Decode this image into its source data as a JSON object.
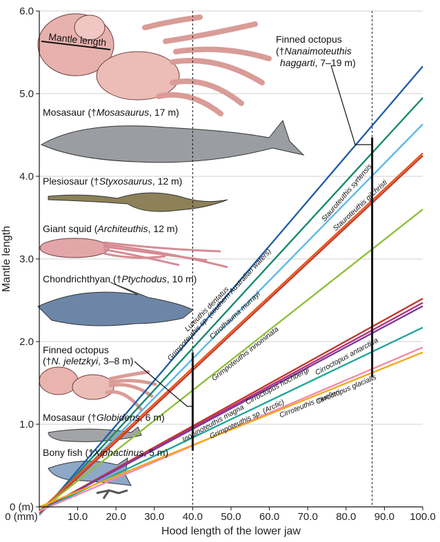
{
  "chart_data": {
    "type": "line",
    "xlabel": "Hood length of the lower jaw",
    "ylabel": "Mantle length",
    "xlim": [
      0,
      100
    ],
    "ylim": [
      0,
      6
    ],
    "x_ticks": [
      "0 (mm)",
      "10.0",
      "20.0",
      "30.0",
      "40.0",
      "50.0",
      "60.0",
      "70.0",
      "80.0",
      "90.0",
      "100.0"
    ],
    "x_tick_values": [
      0,
      10,
      20,
      30,
      40,
      50,
      60,
      70,
      80,
      90,
      100
    ],
    "y_ticks": [
      "0 (m)",
      "1.0",
      "2.0",
      "3.0",
      "4.0",
      "5.0",
      "6.0"
    ],
    "y_tick_values": [
      0,
      1,
      2,
      3,
      4,
      5,
      6
    ],
    "grid": "horizontal",
    "series": [
      {
        "name": "Stauroteuthis syrtensis",
        "color": "#1f5fa8",
        "x": [
          0,
          100
        ],
        "y": [
          -0.1,
          5.33
        ]
      },
      {
        "name": "Grimpoteuthis sp. (southern Australian waters)",
        "color": "#158a6a",
        "x": [
          0,
          100
        ],
        "y": [
          -0.1,
          4.95
        ]
      },
      {
        "name": "Luteuthis dentatus",
        "color": "#5cb8e8",
        "x": [
          0,
          100
        ],
        "y": [
          -0.1,
          4.63
        ]
      },
      {
        "name": "Stauroteuthis gilchristi",
        "color": "#e8561c",
        "x": [
          0,
          100
        ],
        "y": [
          -0.05,
          4.28
        ]
      },
      {
        "name": "Cirrothauma murrayi",
        "color": "#c43a2a",
        "x": [
          0,
          100
        ],
        "y": [
          -0.08,
          4.25
        ]
      },
      {
        "name": "Grimpoteuthis innominata",
        "color": "#8fbf3a",
        "x": [
          0,
          100
        ],
        "y": [
          -0.05,
          3.6
        ]
      },
      {
        "name": "Inopinoteuthis magna",
        "color": "#c0392b",
        "x": [
          0,
          100
        ],
        "y": [
          -0.05,
          2.52
        ]
      },
      {
        "name": "Cirroctopus antarctica",
        "color": "#b8317a",
        "x": [
          0,
          100
        ],
        "y": [
          -0.05,
          2.47
        ]
      },
      {
        "name": "Cirroctopus hochbergi",
        "color": "#7a3aa0",
        "x": [
          0,
          100
        ],
        "y": [
          -0.05,
          2.43
        ]
      },
      {
        "name": "Grimpoteuthis sp. (Arctic)",
        "color": "#20a69a",
        "x": [
          0,
          100
        ],
        "y": [
          -0.05,
          2.17
        ]
      },
      {
        "name": "Cirroctopus glacialis",
        "color": "#f28aa8",
        "x": [
          0,
          100
        ],
        "y": [
          -0.05,
          1.93
        ]
      },
      {
        "name": "Cirroteuthis muelleri",
        "color": "#f2a81c",
        "x": [
          0,
          100
        ],
        "y": [
          0.0,
          1.87
        ]
      }
    ],
    "reference_lines_x": [
      40.0,
      86.8
    ],
    "range_bars": [
      {
        "x": 40.0,
        "y_low": 0.68,
        "y_high": 1.87
      },
      {
        "x": 86.8,
        "y_low": 1.57,
        "y_high": 4.47
      }
    ],
    "annotations": [
      {
        "lines": [
          {
            "text": "Finned octopus"
          },
          {
            "text": "(†",
            "italic": "Nanaimoteuthis",
            "after": ""
          },
          {
            "text": "",
            "italic": "haggarti",
            "after": ", 7–19 m)"
          }
        ]
      },
      {
        "text": "Mosasaur (†",
        "italic": "Mosasaurus",
        "after": ", 17 m)"
      },
      {
        "text": "Plesiosaur (†",
        "italic": "Styxosaurus",
        "after": ", 12 m)"
      },
      {
        "text": "Giant squid (",
        "italic": "Architeuthis",
        "after": ", 12 m)"
      },
      {
        "text": "Chondrichthyan (†",
        "italic": "Ptychodus",
        "after": ", 10 m)"
      },
      {
        "text": "Finned octopus"
      },
      {
        "text": "(†",
        "italic": "N. jeletzkyi",
        "after": ", 3–8 m)"
      },
      {
        "text": "Mosasaur (†",
        "italic": "Globidens",
        "after": ", 6 m)"
      },
      {
        "text": "Bony fish (†",
        "italic": "Xiphactinus",
        "after": ", 5 m)"
      },
      {
        "text": "Mantle length"
      }
    ]
  }
}
